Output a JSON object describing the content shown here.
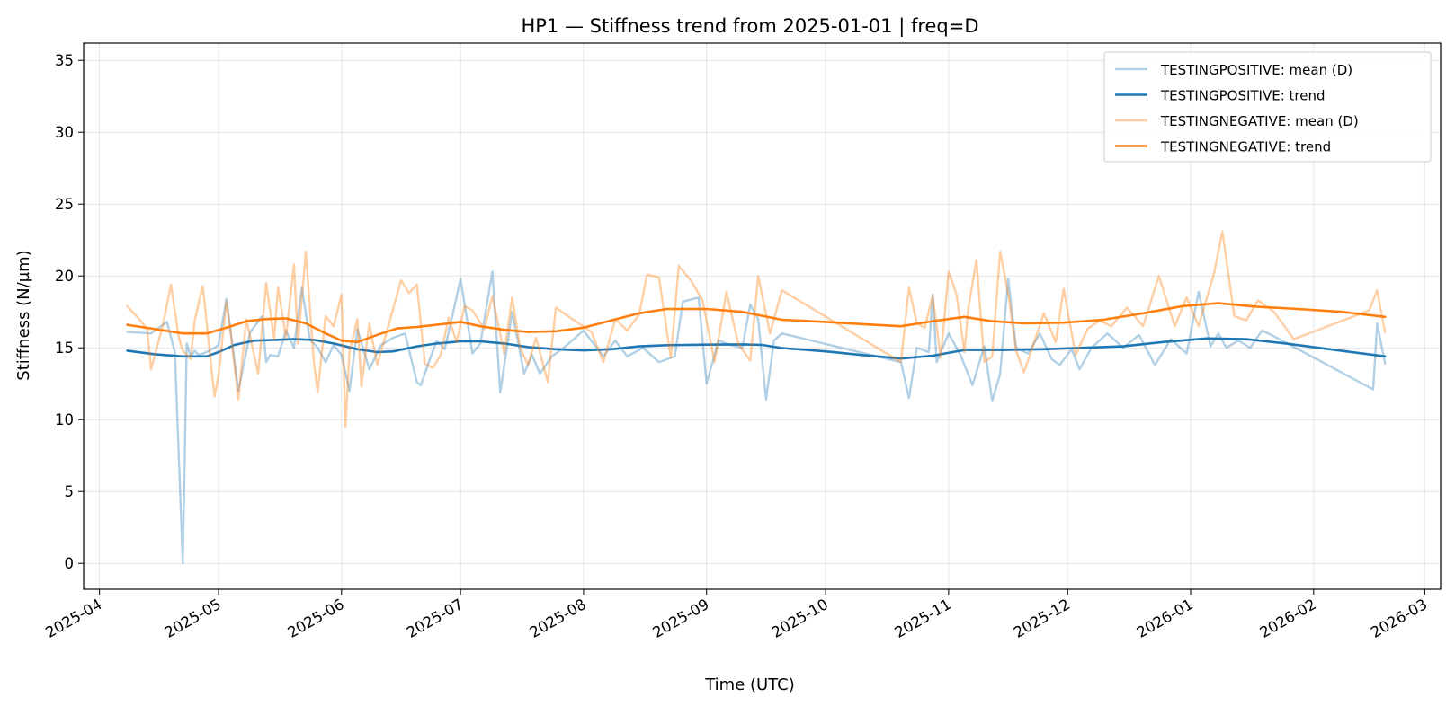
{
  "chart_data": {
    "type": "line",
    "title": "HP1 — Stiffness trend from 2025-01-01 | freq=D",
    "xlabel": "Time (UTC)",
    "ylabel": "Stiffness (N/µm)",
    "ylim": [
      -1.8,
      36.2
    ],
    "xlim": [
      "2025-03-28",
      "2026-03-05"
    ],
    "grid": true,
    "legend_position": "top-right",
    "x_tick_labels": [
      "2025-04",
      "2025-05",
      "2025-06",
      "2025-07",
      "2025-08",
      "2025-09",
      "2025-10",
      "2025-11",
      "2025-12",
      "2026-01",
      "2026-02",
      "2026-03"
    ],
    "x_ticks": [
      "2025-04-01",
      "2025-05-01",
      "2025-06-01",
      "2025-07-01",
      "2025-08-01",
      "2025-09-01",
      "2025-10-01",
      "2025-11-01",
      "2025-12-01",
      "2026-01-01",
      "2026-02-01",
      "2026-03-01"
    ],
    "y_ticks": [
      0,
      5,
      10,
      15,
      20,
      25,
      30,
      35
    ],
    "series": [
      {
        "name": "TESTINGPOSITIVE: mean (D)",
        "color": "#1f77b4",
        "opacity": 0.35,
        "x": [
          "2025-04-08",
          "2025-04-14",
          "2025-04-18",
          "2025-04-20",
          "2025-04-22",
          "2025-04-23",
          "2025-04-24",
          "2025-04-25",
          "2025-04-26",
          "2025-04-28",
          "2025-04-30",
          "2025-05-01",
          "2025-05-03",
          "2025-05-06",
          "2025-05-09",
          "2025-05-12",
          "2025-05-13",
          "2025-05-14",
          "2025-05-16",
          "2025-05-18",
          "2025-05-20",
          "2025-05-22",
          "2025-05-24",
          "2025-05-26",
          "2025-05-28",
          "2025-05-30",
          "2025-06-01",
          "2025-06-03",
          "2025-06-05",
          "2025-06-08",
          "2025-06-11",
          "2025-06-14",
          "2025-06-17",
          "2025-06-20",
          "2025-06-21",
          "2025-06-23",
          "2025-06-25",
          "2025-06-27",
          "2025-06-29",
          "2025-07-01",
          "2025-07-04",
          "2025-07-06",
          "2025-07-09",
          "2025-07-11",
          "2025-07-14",
          "2025-07-17",
          "2025-07-19",
          "2025-07-21",
          "2025-07-24",
          "2025-07-27",
          "2025-08-01",
          "2025-08-06",
          "2025-08-09",
          "2025-08-12",
          "2025-08-16",
          "2025-08-20",
          "2025-08-24",
          "2025-08-26",
          "2025-08-30",
          "2025-09-01",
          "2025-09-04",
          "2025-09-07",
          "2025-09-10",
          "2025-09-12",
          "2025-09-14",
          "2025-09-16",
          "2025-09-18",
          "2025-09-20",
          "2025-10-20",
          "2025-10-22",
          "2025-10-24",
          "2025-10-27",
          "2025-10-28",
          "2025-10-29",
          "2025-11-01",
          "2025-11-04",
          "2025-11-07",
          "2025-11-10",
          "2025-11-12",
          "2025-11-14",
          "2025-11-16",
          "2025-11-18",
          "2025-11-21",
          "2025-11-24",
          "2025-11-27",
          "2025-11-29",
          "2025-12-02",
          "2025-12-04",
          "2025-12-07",
          "2025-12-11",
          "2025-12-15",
          "2025-12-19",
          "2025-12-23",
          "2025-12-27",
          "2025-12-31",
          "2026-01-03",
          "2026-01-06",
          "2026-01-08",
          "2026-01-10",
          "2026-01-13",
          "2026-01-16",
          "2026-01-19",
          "2026-01-22",
          "2026-02-16",
          "2026-02-17",
          "2026-02-19"
        ],
        "values": [
          16.1,
          16.0,
          16.8,
          14.7,
          0.0,
          15.3,
          14.4,
          14.8,
          14.5,
          14.7,
          15.0,
          15.2,
          18.4,
          12.0,
          16.1,
          17.2,
          14.0,
          14.5,
          14.4,
          16.2,
          15.0,
          19.2,
          15.6,
          15.0,
          14.0,
          15.2,
          14.5,
          12.0,
          16.3,
          13.5,
          15.2,
          15.7,
          16.0,
          12.6,
          12.4,
          14.0,
          15.5,
          14.9,
          17.3,
          19.8,
          14.6,
          15.3,
          20.3,
          11.9,
          17.5,
          13.2,
          14.5,
          13.2,
          14.4,
          15.0,
          16.2,
          14.4,
          15.5,
          14.4,
          15.0,
          14.0,
          14.4,
          18.2,
          18.5,
          12.5,
          15.5,
          15.2,
          15.0,
          18.0,
          17.0,
          11.4,
          15.5,
          16.0,
          14.0,
          11.5,
          15.0,
          14.7,
          18.7,
          14.0,
          16.0,
          14.5,
          12.4,
          15.1,
          11.3,
          13.2,
          19.8,
          15.0,
          14.6,
          16.0,
          14.2,
          13.8,
          14.9,
          13.5,
          15.0,
          16.0,
          15.0,
          15.9,
          13.8,
          15.6,
          14.6,
          18.9,
          15.1,
          16.0,
          15.0,
          15.5,
          15.0,
          16.2,
          15.8,
          12.1,
          16.7,
          13.9
        ]
      },
      {
        "name": "TESTINGPOSITIVE: trend",
        "color": "#1f77b4",
        "opacity": 1,
        "x": [
          "2025-04-08",
          "2025-04-15",
          "2025-04-22",
          "2025-04-28",
          "2025-05-01",
          "2025-05-05",
          "2025-05-10",
          "2025-05-15",
          "2025-05-20",
          "2025-05-25",
          "2025-05-30",
          "2025-06-05",
          "2025-06-10",
          "2025-06-14",
          "2025-06-20",
          "2025-06-25",
          "2025-07-01",
          "2025-07-06",
          "2025-07-12",
          "2025-07-18",
          "2025-07-25",
          "2025-08-01",
          "2025-08-08",
          "2025-08-15",
          "2025-08-22",
          "2025-09-01",
          "2025-09-10",
          "2025-09-15",
          "2025-09-20",
          "2025-10-01",
          "2025-10-10",
          "2025-10-20",
          "2025-10-28",
          "2025-11-05",
          "2025-11-15",
          "2025-11-25",
          "2025-12-05",
          "2025-12-15",
          "2025-12-25",
          "2026-01-05",
          "2026-01-15",
          "2026-01-25",
          "2026-02-05",
          "2026-02-19"
        ],
        "values": [
          14.8,
          14.55,
          14.4,
          14.4,
          14.7,
          15.2,
          15.5,
          15.55,
          15.6,
          15.55,
          15.3,
          14.9,
          14.7,
          14.75,
          15.1,
          15.3,
          15.45,
          15.45,
          15.3,
          15.05,
          14.9,
          14.82,
          14.9,
          15.1,
          15.18,
          15.22,
          15.24,
          15.2,
          14.98,
          14.75,
          14.5,
          14.25,
          14.45,
          14.85,
          14.85,
          14.9,
          15.0,
          15.1,
          15.4,
          15.65,
          15.6,
          15.3,
          14.9,
          14.4
        ]
      },
      {
        "name": "TESTINGNEGATIVE: mean (D)",
        "color": "#ff7f0e",
        "opacity": 0.38,
        "x": [
          "2025-04-08",
          "2025-04-11",
          "2025-04-13",
          "2025-04-14",
          "2025-04-17",
          "2025-04-19",
          "2025-04-21",
          "2025-04-22",
          "2025-04-24",
          "2025-04-25",
          "2025-04-27",
          "2025-04-30",
          "2025-05-01",
          "2025-05-03",
          "2025-05-04",
          "2025-05-06",
          "2025-05-08",
          "2025-05-11",
          "2025-05-13",
          "2025-05-15",
          "2025-05-16",
          "2025-05-18",
          "2025-05-20",
          "2025-05-21",
          "2025-05-23",
          "2025-05-25",
          "2025-05-26",
          "2025-05-28",
          "2025-05-30",
          "2025-06-01",
          "2025-06-02",
          "2025-06-03",
          "2025-06-05",
          "2025-06-06",
          "2025-06-08",
          "2025-06-10",
          "2025-06-13",
          "2025-06-16",
          "2025-06-18",
          "2025-06-20",
          "2025-06-22",
          "2025-06-24",
          "2025-06-26",
          "2025-06-28",
          "2025-06-30",
          "2025-07-02",
          "2025-07-04",
          "2025-07-07",
          "2025-07-09",
          "2025-07-12",
          "2025-07-14",
          "2025-07-16",
          "2025-07-18",
          "2025-07-20",
          "2025-07-23",
          "2025-07-25",
          "2025-07-27",
          "2025-08-03",
          "2025-08-06",
          "2025-08-09",
          "2025-08-12",
          "2025-08-15",
          "2025-08-17",
          "2025-08-20",
          "2025-08-23",
          "2025-08-25",
          "2025-08-28",
          "2025-08-31",
          "2025-09-03",
          "2025-09-06",
          "2025-09-09",
          "2025-09-12",
          "2025-09-14",
          "2025-09-17",
          "2025-09-20",
          "2025-10-20",
          "2025-10-22",
          "2025-10-24",
          "2025-10-26",
          "2025-10-28",
          "2025-10-30",
          "2025-11-01",
          "2025-11-03",
          "2025-11-05",
          "2025-11-06",
          "2025-11-08",
          "2025-11-10",
          "2025-11-12",
          "2025-11-14",
          "2025-11-16",
          "2025-11-18",
          "2025-11-20",
          "2025-11-22",
          "2025-11-25",
          "2025-11-28",
          "2025-11-30",
          "2025-12-03",
          "2025-12-06",
          "2025-12-09",
          "2025-12-12",
          "2025-12-16",
          "2025-12-20",
          "2025-12-24",
          "2025-12-28",
          "2025-12-31",
          "2026-01-03",
          "2026-01-07",
          "2026-01-09",
          "2026-01-12",
          "2026-01-15",
          "2026-01-18",
          "2026-01-22",
          "2026-01-27",
          "2026-02-15",
          "2026-02-17",
          "2026-02-19"
        ],
        "values": [
          17.9,
          17.0,
          16.3,
          13.5,
          16.6,
          19.4,
          15.7,
          14.8,
          14.2,
          16.9,
          19.3,
          11.6,
          13.1,
          18.2,
          16.2,
          11.4,
          17.0,
          13.2,
          19.5,
          15.6,
          19.2,
          15.7,
          20.8,
          15.3,
          21.7,
          14.1,
          11.9,
          17.2,
          16.5,
          18.7,
          9.5,
          14.7,
          17.0,
          12.3,
          16.7,
          13.8,
          16.7,
          19.7,
          18.8,
          19.4,
          13.9,
          13.6,
          14.5,
          17.1,
          15.4,
          17.9,
          17.6,
          16.3,
          18.6,
          14.6,
          18.5,
          15.0,
          13.8,
          15.7,
          12.6,
          17.8,
          17.4,
          16.1,
          14.0,
          17.0,
          16.2,
          17.3,
          20.1,
          19.9,
          14.3,
          20.7,
          19.7,
          18.3,
          14.0,
          18.9,
          15.3,
          14.1,
          20.0,
          16.0,
          19.0,
          14.0,
          19.2,
          16.7,
          16.4,
          18.6,
          14.3,
          20.3,
          18.7,
          14.7,
          17.8,
          21.1,
          14.0,
          14.4,
          21.7,
          18.8,
          14.8,
          13.3,
          14.9,
          17.4,
          15.4,
          19.1,
          14.5,
          16.3,
          16.9,
          16.5,
          17.8,
          16.5,
          20.0,
          16.5,
          18.5,
          16.5,
          20.3,
          23.1,
          17.2,
          16.9,
          18.3,
          17.5,
          15.6,
          17.6,
          19.0,
          16.1
        ]
      },
      {
        "name": "TESTINGNEGATIVE: trend",
        "color": "#ff7f0e",
        "opacity": 1,
        "x": [
          "2025-04-08",
          "2025-04-15",
          "2025-04-22",
          "2025-04-28",
          "2025-05-03",
          "2025-05-08",
          "2025-05-13",
          "2025-05-18",
          "2025-05-23",
          "2025-05-28",
          "2025-06-01",
          "2025-06-05",
          "2025-06-10",
          "2025-06-15",
          "2025-06-20",
          "2025-06-25",
          "2025-07-01",
          "2025-07-06",
          "2025-07-12",
          "2025-07-18",
          "2025-07-25",
          "2025-08-01",
          "2025-08-08",
          "2025-08-15",
          "2025-08-22",
          "2025-09-01",
          "2025-09-10",
          "2025-09-20",
          "2025-10-01",
          "2025-10-10",
          "2025-10-20",
          "2025-10-28",
          "2025-11-05",
          "2025-11-12",
          "2025-11-20",
          "2025-11-30",
          "2025-12-10",
          "2025-12-20",
          "2025-12-30",
          "2026-01-08",
          "2026-01-18",
          "2026-01-28",
          "2026-02-08",
          "2026-02-19"
        ],
        "values": [
          16.6,
          16.3,
          16.0,
          16.0,
          16.4,
          16.85,
          17.0,
          17.05,
          16.7,
          16.0,
          15.5,
          15.4,
          15.9,
          16.35,
          16.45,
          16.6,
          16.8,
          16.5,
          16.25,
          16.1,
          16.15,
          16.4,
          16.9,
          17.4,
          17.7,
          17.7,
          17.5,
          16.95,
          16.8,
          16.65,
          16.5,
          16.85,
          17.15,
          16.85,
          16.7,
          16.75,
          16.95,
          17.4,
          17.9,
          18.1,
          17.85,
          17.7,
          17.5,
          17.15
        ]
      }
    ]
  }
}
